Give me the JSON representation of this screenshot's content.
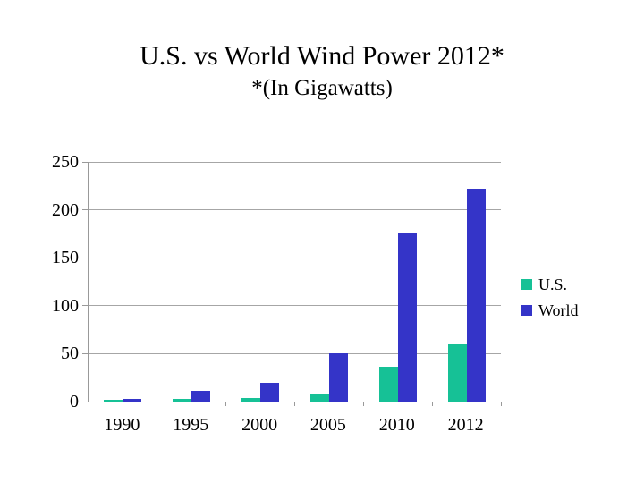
{
  "title": "U.S. vs World Wind Power 2012*",
  "subtitle": "*(In Gigawatts)",
  "colors": {
    "us": "#16C196",
    "world": "#3434C8",
    "gridline": "#A6A6A6",
    "axis": "#999999",
    "text": "#000000",
    "background": "#FFFFFF"
  },
  "chart_data": {
    "type": "bar",
    "title": "U.S. vs World Wind Power 2012*",
    "subtitle": "*(In Gigawatts)",
    "categories": [
      "1990",
      "1995",
      "2000",
      "2005",
      "2010",
      "2012"
    ],
    "series": [
      {
        "name": "U.S.",
        "color": "#16C196",
        "values": [
          2,
          3,
          4,
          8,
          36,
          60
        ]
      },
      {
        "name": "World",
        "color": "#3434C8",
        "values": [
          3,
          11,
          20,
          50,
          175,
          222
        ]
      }
    ],
    "xlabel": "",
    "ylabel": "",
    "ylim": [
      0,
      250
    ],
    "yticks": [
      0,
      50,
      100,
      150,
      200,
      250
    ],
    "grid": true,
    "legend_position": "right",
    "legend_entries": [
      "U.S.",
      "World"
    ]
  }
}
